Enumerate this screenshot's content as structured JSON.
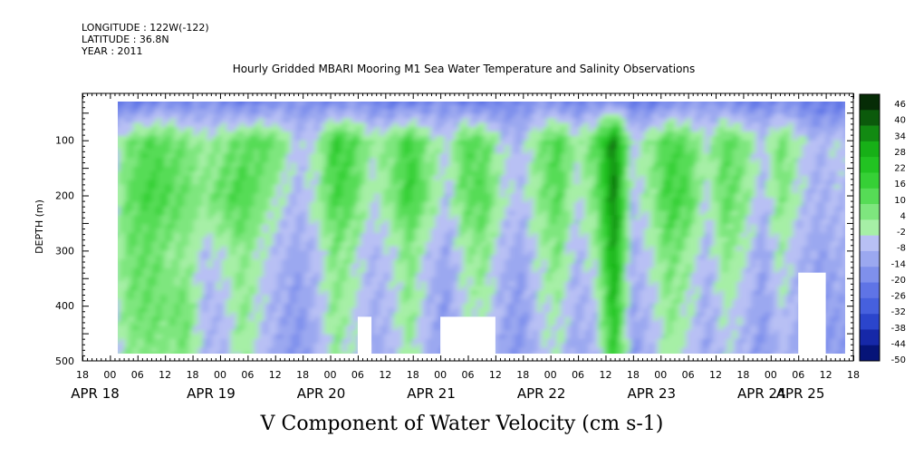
{
  "header": {
    "longitude": "LONGITUDE : 122W(-122)",
    "latitude": "LATITUDE : 36.8N",
    "year": "YEAR : 2011",
    "title": "Hourly Gridded MBARI Mooring M1 Sea Water Temperature and Salinity Observations"
  },
  "footer": {
    "variable_title": "V Component of Water Velocity (cm s-1)"
  },
  "chart_data": {
    "type": "heatmap",
    "title": "Hourly Gridded MBARI Mooring M1 Sea Water Temperature and Salinity Observations",
    "subtitle": "V Component of Water Velocity (cm s-1)",
    "xlabel": "",
    "ylabel": "DEPTH (m)",
    "ylim": [
      500,
      0
    ],
    "y_ticks": [
      100,
      200,
      300,
      400,
      500
    ],
    "x_hour_ticks": [
      "18",
      "00",
      "06",
      "12",
      "18",
      "00",
      "06",
      "12",
      "18",
      "00",
      "06",
      "12",
      "18",
      "00",
      "06",
      "12",
      "18",
      "00",
      "06",
      "12",
      "18",
      "00",
      "06",
      "12",
      "18",
      "00",
      "06",
      "12",
      "18"
    ],
    "x_date_labels": [
      "APR 18",
      "APR 19",
      "APR 20",
      "APR 21",
      "APR 22",
      "APR 23",
      "APR 24",
      "APR 25"
    ],
    "x_range": [
      "APR 18 18:00",
      "APR 25 18:00"
    ],
    "data_extent": {
      "x": [
        "APR 19 00:00",
        "APR 25 18:00"
      ],
      "depth": [
        20,
        490
      ]
    },
    "colorbar": {
      "labels": [
        "46",
        "40",
        "34",
        "28",
        "22",
        "16",
        "10",
        "4",
        "-2",
        "-8",
        "-14",
        "-20",
        "-26",
        "-32",
        "-38",
        "-44",
        "-50"
      ],
      "min": -50,
      "max": 46,
      "colors": [
        "#062c06",
        "#0b5a0b",
        "#128a12",
        "#17b017",
        "#22c322",
        "#36d036",
        "#56dc56",
        "#7ee67e",
        "#a6efa6",
        "#b8c0f4",
        "#9ba8f0",
        "#7f90ec",
        "#5f74e6",
        "#4660de",
        "#2b45cc",
        "#1628a8",
        "#061478"
      ]
    },
    "depth_bands": [
      {
        "depth": 20,
        "v_values": [
          -22,
          -26,
          -24,
          -20,
          -24,
          -18,
          -22,
          -26,
          -24,
          -20,
          -18,
          -22,
          -24,
          -20,
          -22,
          -26,
          -24,
          -22,
          -20,
          -24,
          -26,
          -22,
          -20,
          -18,
          -22,
          -24,
          -20,
          -22,
          -24,
          -26,
          -22,
          -20,
          -18,
          -20,
          -24,
          -22,
          -20,
          -22,
          -24,
          -26,
          -20
        ]
      },
      {
        "depth": 100,
        "v_values": [
          -8,
          6,
          10,
          8,
          4,
          -2,
          2,
          8,
          10,
          4,
          -8,
          -4,
          16,
          10,
          -2,
          4,
          14,
          2,
          -6,
          10,
          8,
          -6,
          -10,
          4,
          12,
          -2,
          8,
          34,
          -6,
          2,
          12,
          8,
          -4,
          10,
          4,
          -8,
          6,
          -4,
          -10,
          -6,
          -8
        ]
      },
      {
        "depth": 200,
        "v_values": [
          -6,
          8,
          12,
          10,
          6,
          2,
          8,
          12,
          4,
          -4,
          -10,
          -2,
          12,
          8,
          -6,
          2,
          16,
          4,
          -8,
          8,
          10,
          -4,
          -8,
          2,
          10,
          -6,
          4,
          34,
          -8,
          0,
          14,
          10,
          -6,
          8,
          2,
          -10,
          4,
          -6,
          -12,
          -8,
          -10
        ]
      },
      {
        "depth": 300,
        "v_values": [
          -4,
          6,
          8,
          2,
          0,
          -8,
          -4,
          2,
          -4,
          -10,
          -14,
          -8,
          4,
          -2,
          -10,
          -6,
          4,
          -8,
          -14,
          -2,
          2,
          -10,
          -14,
          -4,
          4,
          -10,
          -2,
          28,
          -12,
          -4,
          6,
          0,
          -10,
          2,
          -4,
          -14,
          -2,
          -10,
          -14,
          -12,
          -12
        ]
      },
      {
        "depth": 400,
        "v_values": [
          -6,
          4,
          6,
          4,
          6,
          -10,
          -8,
          2,
          -6,
          -12,
          -16,
          -10,
          2,
          -4,
          -12,
          -8,
          2,
          -10,
          -16,
          -4,
          -2,
          -12,
          -16,
          -6,
          -2,
          -12,
          -8,
          22,
          -14,
          -8,
          2,
          -4,
          -12,
          -4,
          -8,
          -16,
          -6,
          -12,
          -16,
          -14,
          -14
        ]
      },
      {
        "depth": 480,
        "v_values": [
          -8,
          2,
          4,
          2,
          4,
          -10,
          -10,
          0,
          -8,
          -14,
          -18,
          -12,
          0,
          -6,
          -14,
          -10,
          0,
          -12,
          -18,
          -6,
          -4,
          -14,
          -18,
          -8,
          -4,
          -14,
          -10,
          18,
          -16,
          -10,
          0,
          -6,
          -14,
          -6,
          -10,
          -18,
          -8,
          -14,
          -18,
          -16,
          -16
        ]
      }
    ],
    "missing_data_regions": [
      {
        "x": [
          "APR 21 06:00",
          "APR 21 09:00"
        ],
        "depth": [
          420,
          490
        ]
      },
      {
        "x": [
          "APR 22 00:00",
          "APR 22 12:00"
        ],
        "depth": [
          420,
          490
        ]
      },
      {
        "x": [
          "APR 25 06:00",
          "APR 25 12:00"
        ],
        "depth": [
          340,
          490
        ]
      }
    ]
  }
}
